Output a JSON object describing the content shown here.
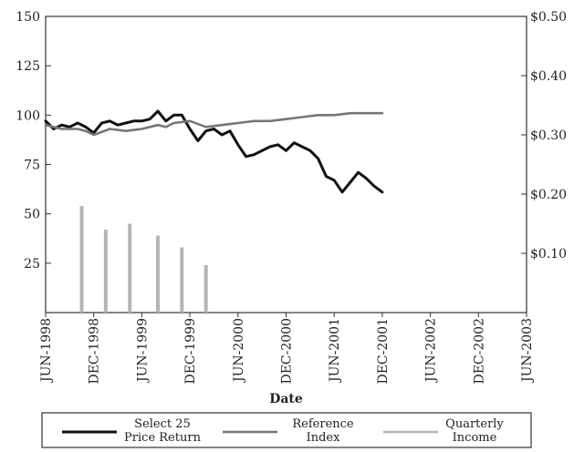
{
  "chart_data": {
    "type": "line",
    "xlabel": "Date",
    "ylabel_left": "",
    "ylabel_right": "",
    "ylim_left": [
      0,
      150
    ],
    "ylim_right": [
      0,
      0.5
    ],
    "y_ticks_left": [
      "25",
      "50",
      "75",
      "100",
      "125",
      "150"
    ],
    "y_tick_values_left": [
      25,
      50,
      75,
      100,
      125,
      150
    ],
    "y_ticks_right": [
      "$0.10",
      "$0.20",
      "$0.30",
      "$0.40",
      "$0.50"
    ],
    "y_tick_values_right": [
      0.1,
      0.2,
      0.3,
      0.4,
      0.5
    ],
    "x_ticks": [
      "JUN-1998",
      "DEC-1998",
      "JUN-1999",
      "DEC-1999",
      "JUN-2000",
      "DEC-2000",
      "JUN-2001",
      "DEC-2001",
      "JUN-2002",
      "DEC-2002",
      "JUN-2003"
    ],
    "x_tick_months": [
      0,
      6,
      12,
      18,
      24,
      30,
      36,
      42,
      48,
      54,
      60
    ],
    "grid": false,
    "legend_position": "bottom",
    "series": [
      {
        "name": "Select 25 Price Return",
        "axis": "left",
        "color": "#111111",
        "points": [
          [
            0,
            97
          ],
          [
            1,
            93
          ],
          [
            2,
            95
          ],
          [
            3,
            94
          ],
          [
            4,
            96
          ],
          [
            5,
            94
          ],
          [
            6,
            91
          ],
          [
            7,
            96
          ],
          [
            8,
            97
          ],
          [
            9,
            95
          ],
          [
            10,
            96
          ],
          [
            11,
            97
          ],
          [
            12,
            97
          ],
          [
            13,
            98
          ],
          [
            14,
            102
          ],
          [
            15,
            97
          ],
          [
            16,
            100
          ],
          [
            17,
            100
          ],
          [
            18,
            93
          ],
          [
            19,
            87
          ],
          [
            20,
            92
          ],
          [
            21,
            93
          ],
          [
            22,
            90
          ],
          [
            23,
            92
          ],
          [
            24,
            85
          ],
          [
            25,
            79
          ],
          [
            26,
            80
          ],
          [
            27,
            82
          ],
          [
            28,
            84
          ],
          [
            29,
            85
          ],
          [
            30,
            82
          ],
          [
            31,
            86
          ],
          [
            32,
            84
          ],
          [
            33,
            82
          ],
          [
            34,
            78
          ],
          [
            35,
            69
          ],
          [
            36,
            67
          ],
          [
            37,
            61
          ],
          [
            38,
            66
          ],
          [
            39,
            71
          ],
          [
            40,
            68
          ],
          [
            41,
            64
          ],
          [
            42,
            61
          ]
        ]
      },
      {
        "name": "Reference Index",
        "axis": "left",
        "color": "#777777",
        "points": [
          [
            0,
            95
          ],
          [
            2,
            93
          ],
          [
            4,
            93
          ],
          [
            5,
            92
          ],
          [
            6,
            90
          ],
          [
            8,
            93
          ],
          [
            10,
            92
          ],
          [
            12,
            93
          ],
          [
            14,
            95
          ],
          [
            15,
            94
          ],
          [
            16,
            96
          ],
          [
            18,
            97
          ],
          [
            20,
            94
          ],
          [
            22,
            95
          ],
          [
            24,
            96
          ],
          [
            26,
            97
          ],
          [
            28,
            97
          ],
          [
            30,
            98
          ],
          [
            32,
            99
          ],
          [
            34,
            100
          ],
          [
            36,
            100
          ],
          [
            38,
            101
          ],
          [
            40,
            101
          ],
          [
            42,
            101
          ]
        ]
      },
      {
        "name": "Quarterly Income",
        "axis": "right",
        "type": "bar",
        "color": "#b5b5b5",
        "points": [
          [
            4.5,
            0.18
          ],
          [
            7.5,
            0.14
          ],
          [
            10.5,
            0.15
          ],
          [
            14,
            0.13
          ],
          [
            17,
            0.11
          ],
          [
            20,
            0.08
          ]
        ]
      }
    ],
    "legend": [
      {
        "line1": "Select 25",
        "line2": "Price Return",
        "color": "#111111"
      },
      {
        "line1": "Reference",
        "line2": "Index",
        "color": "#777777"
      },
      {
        "line1": "Quarterly",
        "line2": "Income",
        "color": "#b5b5b5"
      }
    ]
  }
}
